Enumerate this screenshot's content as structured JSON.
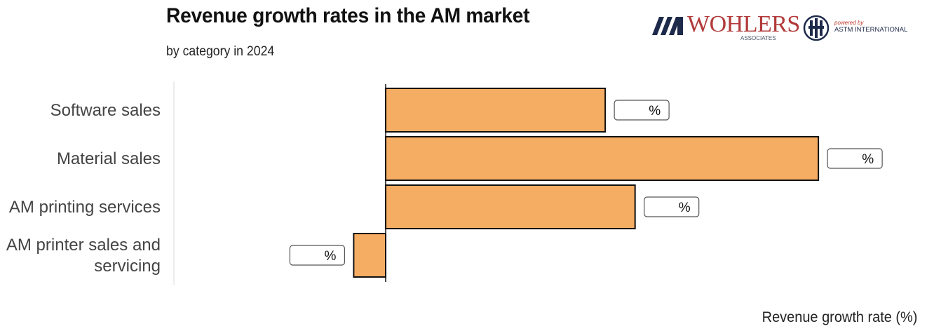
{
  "chart_data": {
    "type": "bar",
    "orientation": "horizontal",
    "title": "Revenue growth rates in the AM market",
    "subtitle": "by category in 2024",
    "xlabel": "Revenue growth rate (%)",
    "ylabel": "",
    "categories": [
      "Software sales",
      "Material sales",
      "AM printing services",
      "AM printer sales and servicing"
    ],
    "values": [
      10.3,
      20.3,
      11.7,
      -1.5
    ],
    "value_labels": [
      "%",
      "%",
      "%",
      "%"
    ],
    "xlim": [
      -10,
      23.5
    ],
    "grid": false,
    "legend": "none",
    "bar_color": "#f5ad64",
    "bar_edge_color": "#111111"
  },
  "logos": {
    "wohlers_name": "WOHLERS",
    "wohlers_sub": "ASSOCIATES",
    "astm_powered": "powered by",
    "astm_name": "ASTM INTERNATIONAL"
  }
}
